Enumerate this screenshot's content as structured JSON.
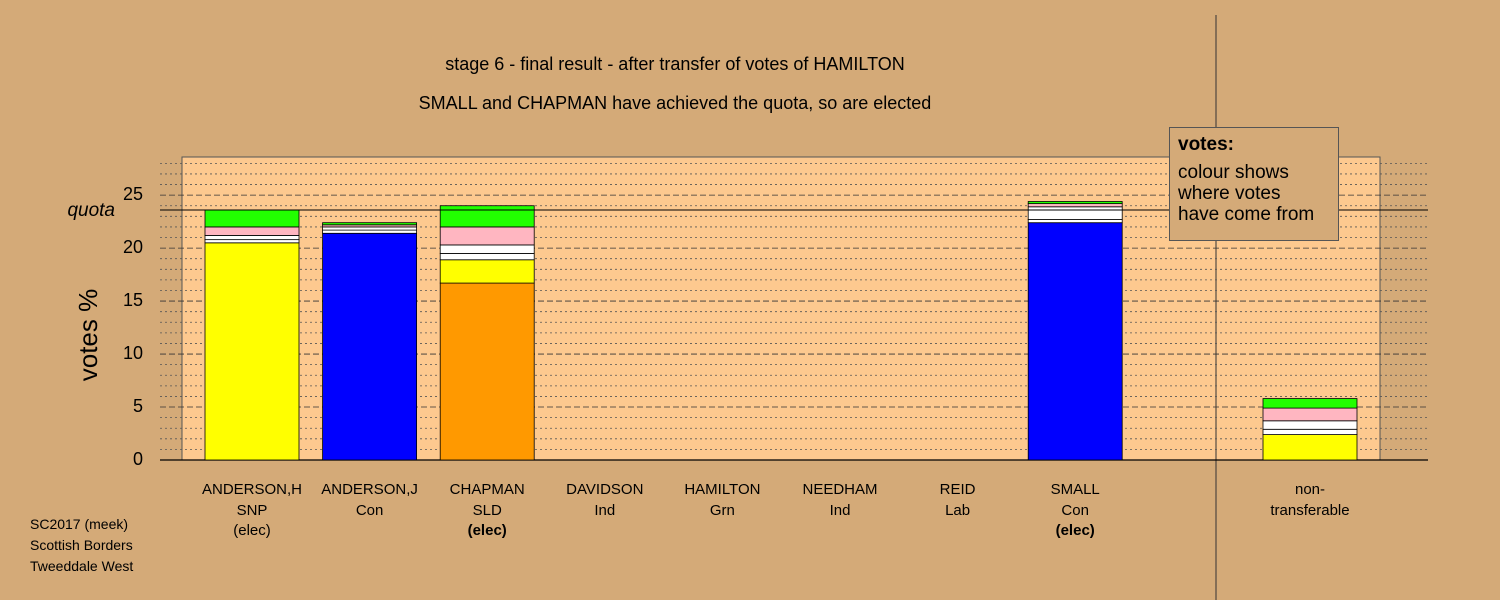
{
  "chart_data": {
    "type": "stacked-bar",
    "title": "stage 6 - final result - after transfer of votes of HAMILTON",
    "subtitle": "SMALL and CHAPMAN have achieved the quota, so are elected",
    "y_label": "votes %",
    "categories": [
      "ANDERSON,H",
      "ANDERSON,J",
      "CHAPMAN",
      "DAVIDSON",
      "HAMILTON",
      "NEEDHAM",
      "REID",
      "SMALL",
      "non-\ntransferable"
    ],
    "parties": [
      "SNP",
      "Con",
      "SLD",
      "Ind",
      "Grn",
      "Ind",
      "Lab",
      "Con",
      null
    ],
    "status": [
      "(elec)",
      null,
      "(elec)",
      null,
      null,
      null,
      null,
      "(elec)",
      null
    ],
    "status_bold": [
      false,
      false,
      true,
      false,
      false,
      false,
      false,
      true,
      false
    ],
    "series": [
      {
        "colors": [
          "#ffff00",
          "#0000ff",
          "#ff9900",
          "#ffffff",
          "#ffffff",
          "#ffffff",
          "#ffffff",
          "#0000ff",
          "#ffff00"
        ],
        "values": [
          20.5,
          21.4,
          16.7,
          0,
          0,
          0,
          0,
          22.4,
          2.4
        ]
      },
      {
        "color": "#ffff00",
        "values": [
          0,
          0,
          2.2,
          0,
          0,
          0,
          0,
          0,
          0
        ]
      },
      {
        "color": "#ffffff",
        "values": [
          0.3,
          0.3,
          0.6,
          0,
          0,
          0,
          0,
          0.3,
          0.5
        ]
      },
      {
        "color": "#ffffff",
        "values": [
          0.4,
          0.3,
          0.8,
          0,
          0,
          0,
          0,
          1.2,
          0.8
        ]
      },
      {
        "color": "#ffb6c1",
        "values": [
          0.8,
          0.2,
          1.7,
          0,
          0,
          0,
          0,
          0.3,
          1.2
        ]
      },
      {
        "color": "#22ff00",
        "values": [
          1.6,
          0.2,
          2.0,
          0,
          0,
          0,
          0,
          0.2,
          0.9
        ]
      }
    ],
    "quota": {
      "label": "quota",
      "value": 23.6
    },
    "ylim": [
      0,
      28.6
    ],
    "yticks": [
      0,
      5,
      10,
      15,
      20,
      25
    ],
    "yminor": [
      1,
      2,
      3,
      4,
      6,
      7,
      8,
      9,
      11,
      12,
      13,
      14,
      16,
      17,
      18,
      19,
      21,
      22,
      23,
      24,
      26,
      27,
      28
    ],
    "legend": {
      "title": "votes:",
      "lines": [
        "colour shows",
        "where votes",
        "have come from"
      ]
    },
    "footnote": [
      "SC2017 (meek)",
      "Scottish Borders",
      "Tweeddale West"
    ]
  }
}
